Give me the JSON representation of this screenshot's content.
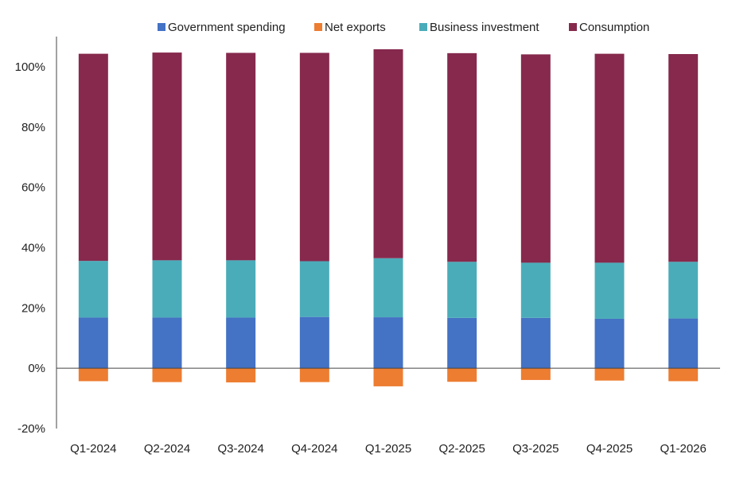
{
  "chart_data": {
    "type": "bar",
    "stacked": true,
    "categories": [
      "Q1-2024",
      "Q2-2024",
      "Q3-2024",
      "Q4-2024",
      "Q1-2025",
      "Q2-2025",
      "Q3-2025",
      "Q4-2025",
      "Q1-2026"
    ],
    "series": [
      {
        "name": "Government spending",
        "color": "#4472c4",
        "values": [
          16.8,
          16.8,
          16.8,
          17.0,
          16.9,
          16.7,
          16.7,
          16.4,
          16.5
        ]
      },
      {
        "name": "Net exports",
        "color": "#ed7d31",
        "values": [
          -4.3,
          -4.6,
          -4.7,
          -4.6,
          -6.0,
          -4.5,
          -3.9,
          -4.1,
          -4.3
        ]
      },
      {
        "name": "Business investment",
        "color": "#4bacb9",
        "values": [
          18.8,
          19.0,
          19.0,
          18.5,
          19.6,
          18.6,
          18.3,
          18.6,
          18.8
        ]
      },
      {
        "name": "Consumption",
        "color": "#86294d",
        "values": [
          68.7,
          68.9,
          68.8,
          69.1,
          69.3,
          69.2,
          69.1,
          69.3,
          68.9
        ]
      }
    ],
    "stack_order": [
      "Government spending",
      "Business investment",
      "Consumption"
    ],
    "negative_series": [
      "Net exports"
    ],
    "title": "",
    "xlabel": "",
    "ylabel": "",
    "ylim": [
      -20,
      110
    ],
    "yticks": [
      -20,
      0,
      20,
      40,
      60,
      80,
      100
    ],
    "ytick_format": "percent",
    "grid": false,
    "legend_position": "top"
  }
}
